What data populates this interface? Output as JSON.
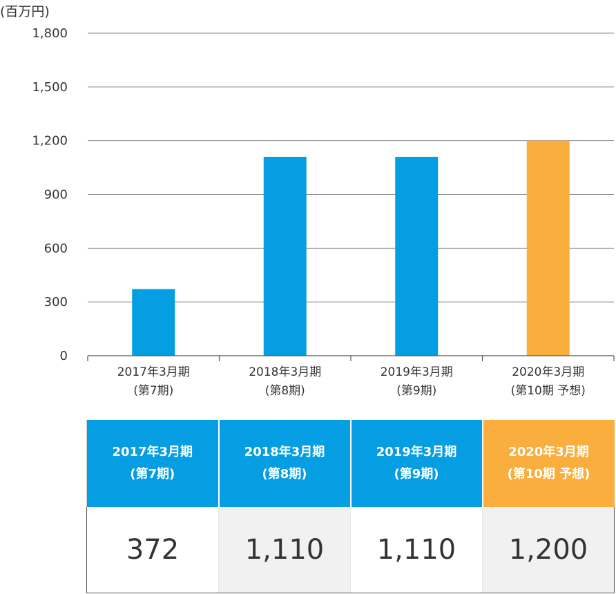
{
  "unit_label": "(百万円)",
  "colors": {
    "actual": "#069ee3",
    "forecast": "#f9ae3d",
    "grid": "#888888"
  },
  "chart_data": {
    "type": "bar",
    "categories": [
      [
        "2017年3月期",
        "(第7期)"
      ],
      [
        "2018年3月期",
        "(第8期)"
      ],
      [
        "2019年3月期",
        "(第9期)"
      ],
      [
        "2020年3月期",
        "(第10期 予想)"
      ]
    ],
    "values": [
      372,
      1110,
      1110,
      1200
    ],
    "bar_colors": [
      "#069ee3",
      "#069ee3",
      "#069ee3",
      "#f9ae3d"
    ],
    "ylim": [
      0,
      1800
    ],
    "yticks": [
      "0",
      "300",
      "600",
      "900",
      "1,200",
      "1,500",
      "1,800"
    ],
    "ytick_values": [
      0,
      300,
      600,
      900,
      1200,
      1500,
      1800
    ],
    "grid": true
  },
  "table": {
    "headers": [
      {
        "line1": "2017年3月期",
        "line2": "(第7期)",
        "color": "#069ee3"
      },
      {
        "line1": "2018年3月期",
        "line2": "(第8期)",
        "color": "#069ee3"
      },
      {
        "line1": "2019年3月期",
        "line2": "(第9期)",
        "color": "#069ee3"
      },
      {
        "line1": "2020年3月期",
        "line2": "(第10期 予想)",
        "color": "#f9ae3d"
      }
    ],
    "values": [
      "372",
      "1,110",
      "1,110",
      "1,200"
    ]
  }
}
